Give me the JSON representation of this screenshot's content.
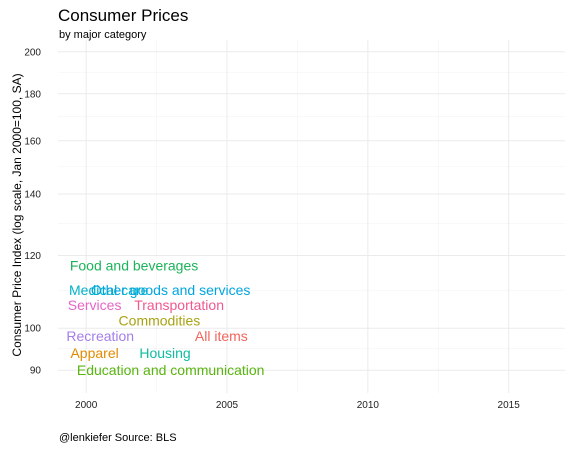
{
  "chart_data": {
    "type": "scatter",
    "title": "Consumer Prices",
    "subtitle": "by major category",
    "ylabel": "Consumer Price Index (log scale, Jan 2000=100, SA)",
    "xlabel": "",
    "caption": "@lenkiefer Source: BLS",
    "y_scale": "log",
    "xlim": [
      1999,
      2017
    ],
    "ylim": [
      85,
      206
    ],
    "x_ticks": [
      2000,
      2005,
      2010,
      2015
    ],
    "y_ticks": [
      90,
      100,
      120,
      140,
      160,
      180,
      200
    ],
    "grid": true,
    "legend": "none",
    "points": [
      {
        "label": "Food and beverages",
        "x": 2001.7,
        "y": 117,
        "color": "#1db35a"
      },
      {
        "label": "Medical care",
        "x": 2000.8,
        "y": 110,
        "color": "#00b3c8"
      },
      {
        "label": "Other goods and services",
        "x": 2003.0,
        "y": 110,
        "color": "#00a5e0"
      },
      {
        "label": "Services",
        "x": 2000.3,
        "y": 106,
        "color": "#e565c8"
      },
      {
        "label": "Transportation",
        "x": 2003.3,
        "y": 106,
        "color": "#f0588e"
      },
      {
        "label": "Commodities",
        "x": 2002.6,
        "y": 102,
        "color": "#a9a214"
      },
      {
        "label": "All items",
        "x": 2004.8,
        "y": 98,
        "color": "#f0655c"
      },
      {
        "label": "Recreation",
        "x": 2000.5,
        "y": 98,
        "color": "#a47ee8"
      },
      {
        "label": "Apparel",
        "x": 2000.3,
        "y": 94,
        "color": "#e08b00"
      },
      {
        "label": "Housing",
        "x": 2002.8,
        "y": 94,
        "color": "#10bca0"
      },
      {
        "label": "Education and communication",
        "x": 2003.0,
        "y": 90,
        "color": "#59b50f"
      }
    ]
  }
}
